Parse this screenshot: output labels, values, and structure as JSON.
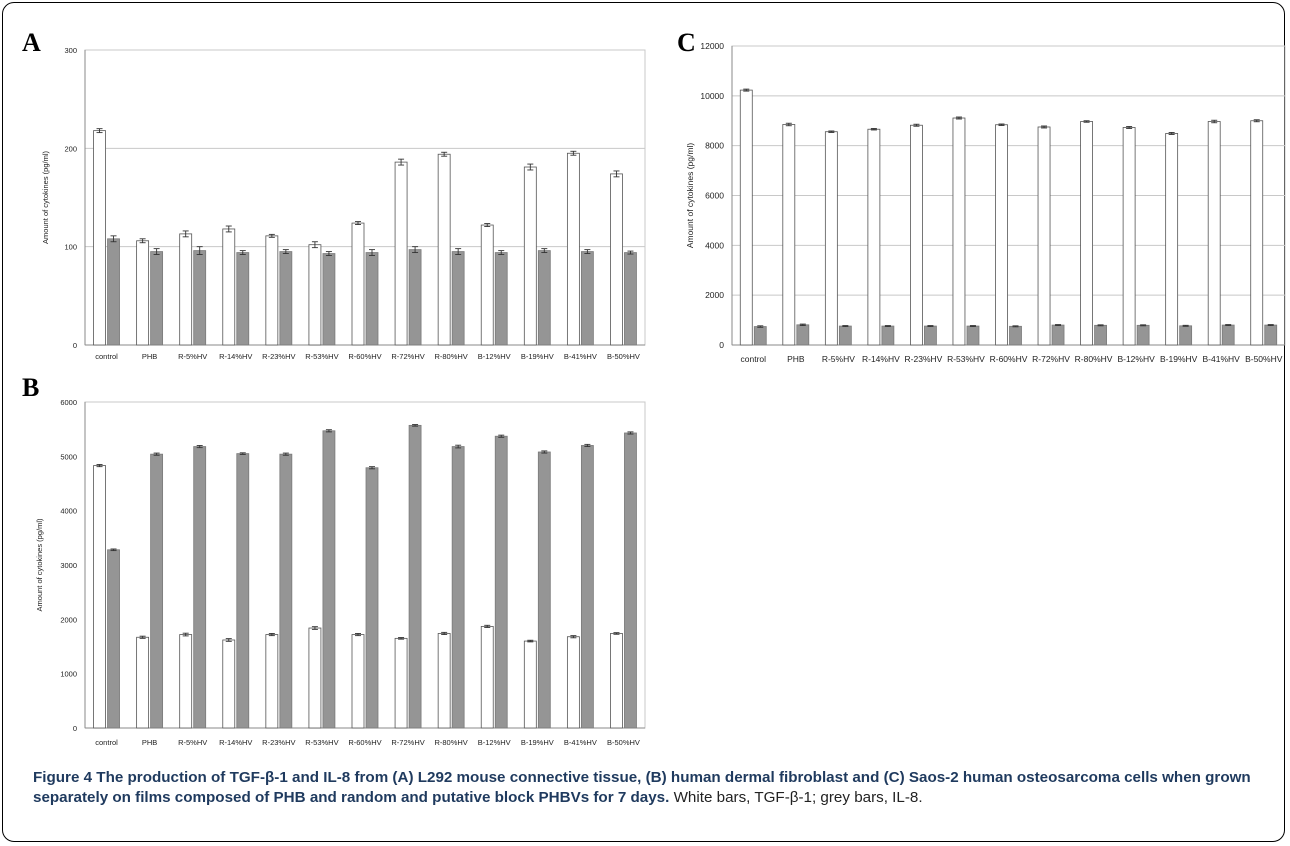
{
  "caption": {
    "title": "Figure 4 The production of TGF-β-1 and IL-8 from (A) L292 mouse connective tissue, (B) human dermal fibroblast and (C) Saos-2 human osteosarcoma cells when grown separately on films composed of PHB and random and putative block PHBVs for 7 days.",
    "text": "White bars, TGF-β-1; grey bars, IL-8."
  },
  "colors": {
    "white_bar": "#ffffff",
    "grey_bar": "#959595",
    "grid": "#c8c8c8",
    "axis": "#8a8a8a",
    "text": "#222222"
  },
  "chart_data": [
    {
      "panel": "A",
      "type": "bar",
      "ylabel": "Amount of cytokines (pg/ml)",
      "ylim": [
        0,
        300
      ],
      "yticks": [
        0,
        100,
        200,
        300
      ],
      "grid": true,
      "categories": [
        "control",
        "PHB",
        "R-5%HV",
        "R-14%HV",
        "R-23%HV",
        "R-53%HV",
        "R-60%HV",
        "R-72%HV",
        "R-80%HV",
        "B-12%HV",
        "B-19%HV",
        "B-41%HV",
        "B-50%HV"
      ],
      "series": [
        {
          "values": [
            218,
            106,
            113,
            118,
            111,
            102,
            124,
            186,
            194,
            122,
            181,
            195,
            174
          ],
          "errors": [
            2,
            2,
            3,
            3,
            1.5,
            3,
            1.5,
            3,
            2,
            1.5,
            3,
            2,
            3
          ]
        },
        {
          "values": [
            108,
            95,
            96,
            94,
            95,
            93,
            94,
            97,
            95,
            94,
            96,
            95,
            94
          ],
          "errors": [
            3,
            3,
            4,
            2,
            2,
            2,
            3,
            3,
            3,
            2,
            2,
            2,
            1.5
          ]
        }
      ]
    },
    {
      "panel": "B",
      "type": "bar",
      "ylabel": "Amount of cytokines (pg/ml)",
      "ylim": [
        0,
        6000
      ],
      "yticks": [
        0,
        1000,
        2000,
        3000,
        4000,
        5000,
        6000
      ],
      "grid": false,
      "categories": [
        "control",
        "PHB",
        "R-5%HV",
        "R-14%HV",
        "R-23%HV",
        "R-53%HV",
        "R-60%HV",
        "R-72%HV",
        "R-80%HV",
        "B-12%HV",
        "B-19%HV",
        "B-41%HV",
        "B-50%HV"
      ],
      "series": [
        {
          "values": [
            4830,
            1670,
            1720,
            1620,
            1720,
            1840,
            1720,
            1650,
            1740,
            1870,
            1600,
            1680,
            1740
          ],
          "errors": [
            20,
            20,
            25,
            25,
            20,
            25,
            20,
            15,
            20,
            20,
            15,
            20,
            15
          ]
        },
        {
          "values": [
            3280,
            5040,
            5180,
            5050,
            5040,
            5470,
            4790,
            5570,
            5180,
            5370,
            5080,
            5200,
            5430
          ],
          "errors": [
            15,
            20,
            20,
            15,
            20,
            20,
            20,
            15,
            25,
            20,
            20,
            20,
            20
          ]
        }
      ]
    },
    {
      "panel": "C",
      "type": "bar",
      "ylabel": "Amount of cytokines (pg/ml)",
      "ylim": [
        0,
        12000
      ],
      "yticks": [
        0,
        2000,
        4000,
        6000,
        8000,
        10000,
        12000
      ],
      "grid": true,
      "categories": [
        "control",
        "PHB",
        "R-5%HV",
        "R-14%HV",
        "R-23%HV",
        "R-53%HV",
        "R-60%HV",
        "R-72%HV",
        "R-80%HV",
        "B-12%HV",
        "B-19%HV",
        "B-41%HV",
        "B-50%HV"
      ],
      "series": [
        {
          "values": [
            10230,
            8850,
            8560,
            8660,
            8820,
            9110,
            8840,
            8750,
            8970,
            8730,
            8490,
            8970,
            9000
          ],
          "errors": [
            40,
            50,
            30,
            30,
            40,
            40,
            30,
            40,
            30,
            40,
            40,
            50,
            40
          ]
        },
        {
          "values": [
            740,
            810,
            760,
            760,
            760,
            760,
            750,
            800,
            790,
            790,
            770,
            800,
            800
          ],
          "errors": [
            30,
            30,
            20,
            20,
            20,
            20,
            20,
            20,
            20,
            20,
            20,
            20,
            20
          ]
        }
      ]
    }
  ]
}
